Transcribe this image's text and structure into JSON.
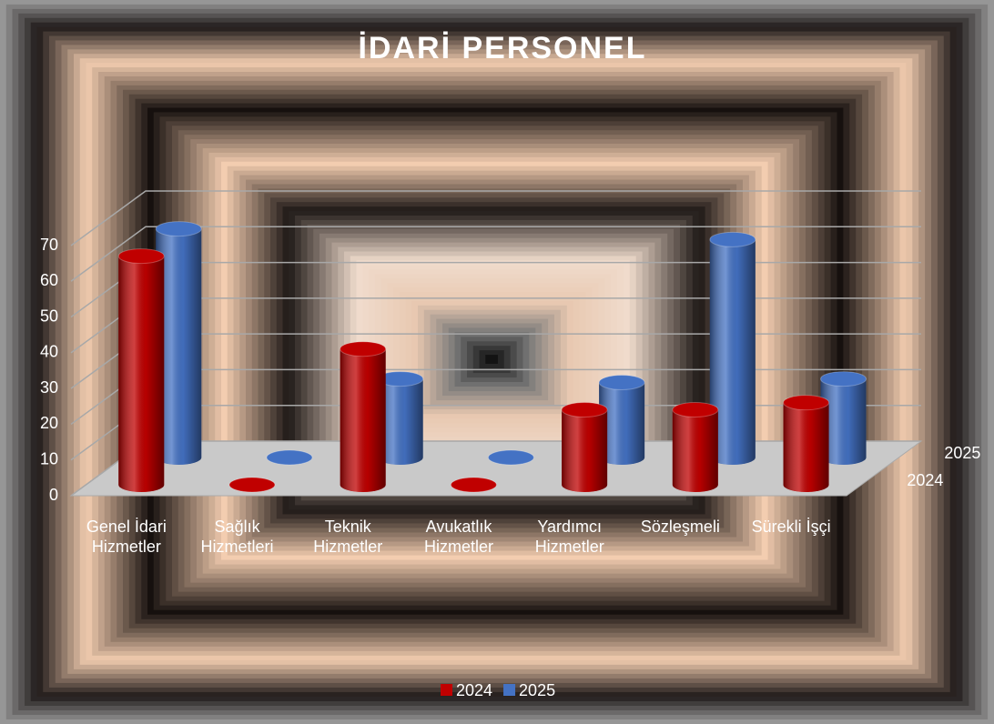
{
  "chart_data": {
    "type": "bar3d",
    "title": "İDARİ PERSONEL",
    "categories": [
      "Genel İdari Hizmetler",
      "Sağlık Hizmetleri",
      "Teknik Hizmetler",
      "Avukatlık Hizmetler",
      "Yardımcı Hizmetler",
      "Sözleşmeli",
      "Sürekli İşçi"
    ],
    "series": [
      {
        "name": "2024",
        "color": "#c00000",
        "values": [
          64,
          0,
          38,
          0,
          21,
          21,
          23
        ]
      },
      {
        "name": "2025",
        "color": "#4472c4",
        "values": [
          64,
          0,
          22,
          0,
          21,
          61,
          22
        ]
      }
    ],
    "ylim": [
      0,
      70
    ],
    "yticks": [
      0,
      10,
      20,
      30,
      40,
      50,
      60,
      70
    ],
    "grid": true,
    "legend": "bottom"
  }
}
